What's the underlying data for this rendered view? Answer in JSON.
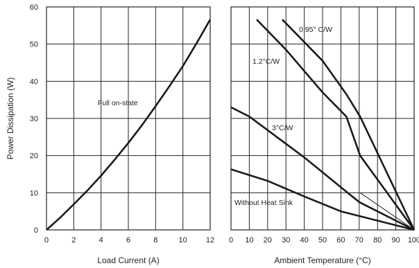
{
  "chart_data": [
    {
      "type": "line",
      "xlabel": "Load Current (A)",
      "ylabel": "Power Dissipation (W)",
      "xlim": [
        0,
        12
      ],
      "ylim": [
        0,
        60
      ],
      "xticks": [
        "0",
        "2",
        "4",
        "6",
        "8",
        "10",
        "12"
      ],
      "yticks": [
        "0",
        "10",
        "20",
        "30",
        "40",
        "50",
        "60"
      ],
      "grid": true,
      "series": [
        {
          "name": "Full on-state",
          "color": "#1a1a1a",
          "points": [
            [
              0,
              0
            ],
            [
              1,
              3.3
            ],
            [
              2,
              6.9
            ],
            [
              3,
              10.6
            ],
            [
              4,
              14.6
            ],
            [
              5,
              18.9
            ],
            [
              6,
              23.4
            ],
            [
              7,
              28.2
            ],
            [
              8,
              33.3
            ],
            [
              9,
              38.6
            ],
            [
              10,
              44.1
            ],
            [
              11,
              50.2
            ],
            [
              12,
              56.6
            ]
          ]
        }
      ]
    },
    {
      "type": "line",
      "xlabel": "Ambient Temperature (°C)",
      "xlim": [
        0,
        100
      ],
      "ylim": [
        0,
        60
      ],
      "xticks": [
        "0",
        "10",
        "20",
        "30",
        "40",
        "50",
        "60",
        "70",
        "80",
        "90",
        "100"
      ],
      "grid": true,
      "series": [
        {
          "name": "0.95° C/W",
          "color": "#1a1a1a",
          "points": [
            [
              28,
              56.6
            ],
            [
              50,
              45.5
            ],
            [
              63,
              36.5
            ],
            [
              70.5,
              30.5
            ],
            [
              100,
              0
            ]
          ]
        },
        {
          "name": "1.2°C/W",
          "color": "#1a1a1a",
          "points": [
            [
              14,
              56.6
            ],
            [
              30,
              48.5
            ],
            [
              50,
              37
            ],
            [
              63,
              30.5
            ],
            [
              70.5,
              20
            ],
            [
              100,
              0
            ]
          ]
        },
        {
          "name": "3°C/W",
          "color": "#1a1a1a",
          "points": [
            [
              0,
              33
            ],
            [
              10,
              30.5
            ],
            [
              25,
              25
            ],
            [
              40,
              19.5
            ],
            [
              55,
              13.5
            ],
            [
              70,
              7.5
            ],
            [
              100,
              0
            ]
          ]
        },
        {
          "name": "Without Heat Sink",
          "color": "#1a1a1a",
          "points": [
            [
              0,
              16.3
            ],
            [
              20,
              13.2
            ],
            [
              40,
              9
            ],
            [
              60,
              5
            ],
            [
              100,
              0
            ]
          ]
        }
      ],
      "reference_lines": [
        {
          "color": "#1a1a1a",
          "points": [
            [
              70.5,
              10
            ],
            [
              100,
              0
            ]
          ]
        }
      ]
    }
  ]
}
